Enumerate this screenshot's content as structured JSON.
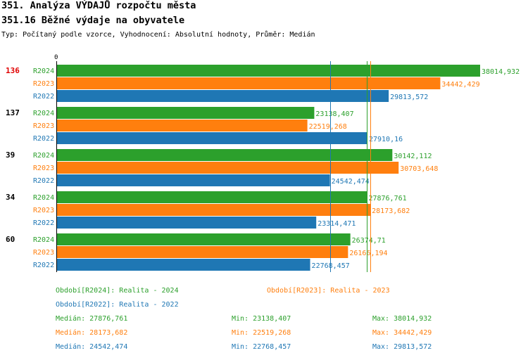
{
  "header": {
    "title": "351. Analýza VÝDAJŮ rozpočtu města",
    "subtitle": "351.16 Běžné výdaje na obyvatele",
    "info": "Typ: Počítaný podle vzorce, Vyhodnocení: Absolutní hodnoty, Průměr: Medián"
  },
  "colors": {
    "R2024": "#2ca02c",
    "R2023": "#ff7f0e",
    "R2022": "#1f77b4",
    "highlight": "#e00000"
  },
  "chart_data": {
    "type": "bar",
    "orientation": "horizontal",
    "axis_zero_label": "0",
    "xlim": [
      0,
      38014.932
    ],
    "series_names": [
      "R2024",
      "R2023",
      "R2022"
    ],
    "groups": [
      {
        "label": "136",
        "highlight": true,
        "values": [
          {
            "series": "R2024",
            "value": 38014.932,
            "label": "38014,932"
          },
          {
            "series": "R2023",
            "value": 34442.429,
            "label": "34442,429"
          },
          {
            "series": "R2022",
            "value": 29813.572,
            "label": "29813,572"
          }
        ]
      },
      {
        "label": "137",
        "highlight": false,
        "values": [
          {
            "series": "R2024",
            "value": 23138.407,
            "label": "23138,407"
          },
          {
            "series": "R2023",
            "value": 22519.268,
            "label": "22519,268"
          },
          {
            "series": "R2022",
            "value": 27910.16,
            "label": "27910,16"
          }
        ]
      },
      {
        "label": "39",
        "highlight": false,
        "values": [
          {
            "series": "R2024",
            "value": 30142.112,
            "label": "30142,112"
          },
          {
            "series": "R2023",
            "value": 30703.648,
            "label": "30703,648"
          },
          {
            "series": "R2022",
            "value": 24542.474,
            "label": "24542,474"
          }
        ]
      },
      {
        "label": "34",
        "highlight": false,
        "values": [
          {
            "series": "R2024",
            "value": 27876.761,
            "label": "27876,761"
          },
          {
            "series": "R2023",
            "value": 28173.682,
            "label": "28173,682"
          },
          {
            "series": "R2022",
            "value": 23314.471,
            "label": "23314,471"
          }
        ]
      },
      {
        "label": "60",
        "highlight": false,
        "values": [
          {
            "series": "R2024",
            "value": 26374.71,
            "label": "26374,71"
          },
          {
            "series": "R2023",
            "value": 26166.194,
            "label": "26166,194"
          },
          {
            "series": "R2022",
            "value": 22768.457,
            "label": "22768,457"
          }
        ]
      }
    ],
    "median_lines": [
      {
        "series": "R2024",
        "value": 27876.761
      },
      {
        "series": "R2023",
        "value": 28173.682
      },
      {
        "series": "R2022",
        "value": 24542.474
      }
    ]
  },
  "legend": {
    "period_2024": "Období[R2024]: Realita - 2024",
    "period_2023": "Období[R2023]: Realita - 2023",
    "period_2022": "Období[R2022]: Realita - 2022",
    "stats": [
      {
        "median": "Medián: 27876,761",
        "min": "Min: 23138,407",
        "max": "Max: 38014,932"
      },
      {
        "median": "Medián: 28173,682",
        "min": "Min: 22519,268",
        "max": "Max: 34442,429"
      },
      {
        "median": "Medián: 24542,474",
        "min": "Min: 22768,457",
        "max": "Max: 29813,572"
      }
    ]
  }
}
